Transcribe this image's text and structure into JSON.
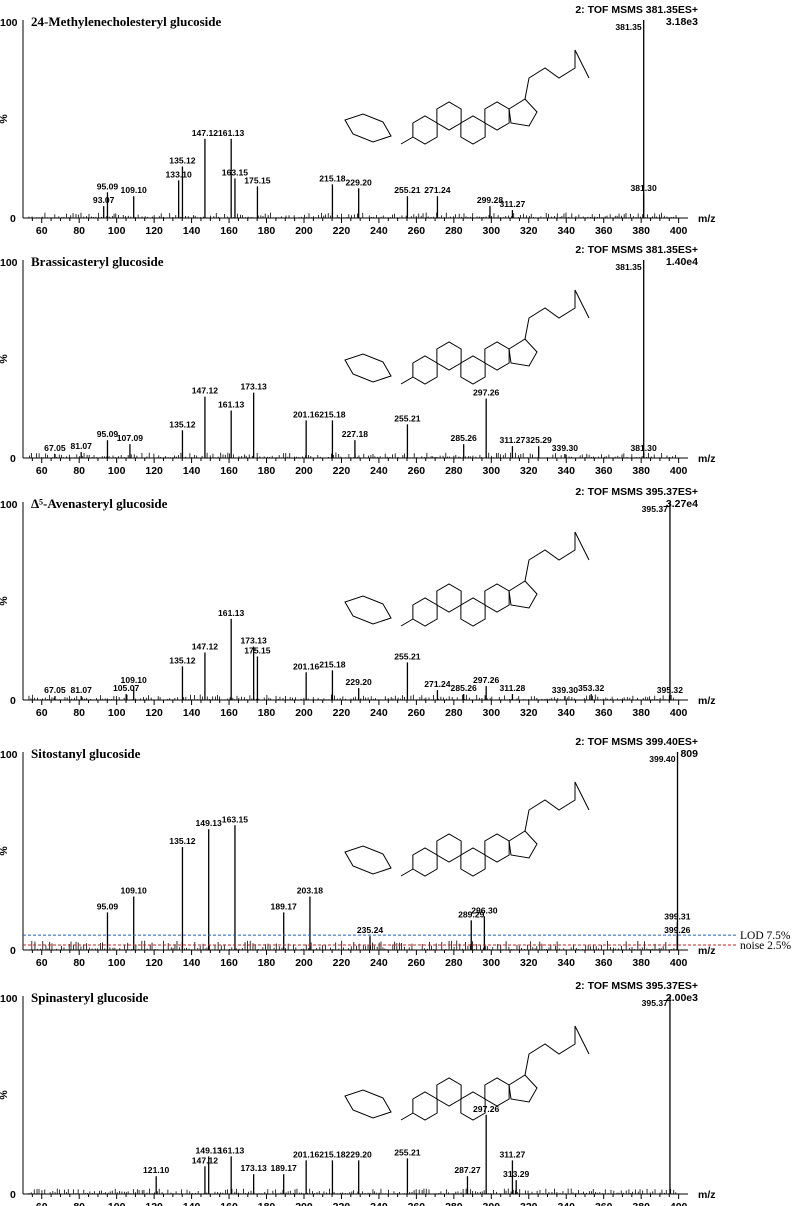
{
  "colors": {
    "lod_line": "#1f5fbf",
    "noise_line": "#cc1f1f",
    "ink": "#000000"
  },
  "panels": [
    {
      "title": "24-Methylenecholesteryl glucoside",
      "header": "2: TOF MSMS 381.35ES+",
      "base_peak_label": "381.35",
      "intensity": "3.18e3",
      "y_top": "100",
      "y_mid": "%",
      "y_zero": "0",
      "x_unit": "m/z",
      "ticks": [
        "60",
        "80",
        "100",
        "120",
        "140",
        "160",
        "180",
        "200",
        "220",
        "240",
        "260",
        "280",
        "300",
        "320",
        "340",
        "360",
        "380",
        "400"
      ]
    },
    {
      "title": "Brassicasteryl glucoside",
      "header": "2: TOF MSMS 381.35ES+",
      "base_peak_label": "381.35",
      "intensity": "1.40e4",
      "y_top": "100",
      "y_mid": "%",
      "y_zero": "0",
      "x_unit": "m/z",
      "ticks": [
        "60",
        "80",
        "100",
        "120",
        "140",
        "160",
        "180",
        "200",
        "220",
        "240",
        "260",
        "280",
        "300",
        "320",
        "340",
        "360",
        "380",
        "400"
      ]
    },
    {
      "title": "Δ⁵-Avenasteryl glucoside",
      "header": "2: TOF MSMS 395.37ES+",
      "base_peak_label": "395.37",
      "intensity": "3.27e4",
      "y_top": "100",
      "y_mid": "%",
      "y_zero": "0",
      "x_unit": "m/z",
      "ticks": [
        "60",
        "80",
        "100",
        "120",
        "140",
        "160",
        "180",
        "200",
        "220",
        "240",
        "260",
        "280",
        "300",
        "320",
        "340",
        "360",
        "380",
        "400"
      ]
    },
    {
      "title": "Sitostanyl glucoside",
      "header": "2: TOF MSMS 399.40ES+",
      "base_peak_label": "399.40",
      "intensity": "809",
      "y_top": "100",
      "y_mid": "%",
      "y_zero": "0",
      "x_unit": "m/z",
      "ticks": [
        "60",
        "80",
        "100",
        "120",
        "140",
        "160",
        "180",
        "200",
        "220",
        "240",
        "260",
        "280",
        "300",
        "320",
        "340",
        "360",
        "380",
        "400"
      ],
      "lod_label": "LOD 7.5%",
      "noise_label": "noise 2.5%"
    },
    {
      "title": "Spinasteryl glucoside",
      "header": "2: TOF MSMS 395.37ES+",
      "base_peak_label": "395.37",
      "intensity": "2.00e3",
      "y_top": "100",
      "y_mid": "%",
      "y_zero": "0",
      "x_unit": "m/z",
      "ticks": [
        "60",
        "80",
        "100",
        "120",
        "140",
        "160",
        "180",
        "200",
        "220",
        "240",
        "260",
        "280",
        "300",
        "320",
        "340",
        "360",
        "380",
        "400"
      ]
    }
  ],
  "chart_data": [
    {
      "type": "bar",
      "title": "24-Methylenecholesteryl glucoside",
      "xlabel": "m/z",
      "ylabel": "%",
      "xlim": [
        50,
        405
      ],
      "ylim": [
        0,
        100
      ],
      "peaks": [
        {
          "mz": 381.35,
          "rel": 100,
          "label": "381.35"
        },
        {
          "mz": 381.3,
          "rel": 12,
          "label": "381.30"
        },
        {
          "mz": 93.07,
          "rel": 6,
          "label": "93.07"
        },
        {
          "mz": 95.09,
          "rel": 13,
          "label": "95.09"
        },
        {
          "mz": 109.1,
          "rel": 11,
          "label": "109.10"
        },
        {
          "mz": 133.1,
          "rel": 19,
          "label": "133.10"
        },
        {
          "mz": 135.12,
          "rel": 26,
          "label": "135.12"
        },
        {
          "mz": 147.12,
          "rel": 40,
          "label": "147.12"
        },
        {
          "mz": 161.13,
          "rel": 40,
          "label": "161.13"
        },
        {
          "mz": 163.15,
          "rel": 20,
          "label": "163.15"
        },
        {
          "mz": 175.15,
          "rel": 16,
          "label": "175.15"
        },
        {
          "mz": 215.18,
          "rel": 17,
          "label": "215.18"
        },
        {
          "mz": 229.2,
          "rel": 15,
          "label": "229.20"
        },
        {
          "mz": 255.21,
          "rel": 11,
          "label": "255.21"
        },
        {
          "mz": 271.24,
          "rel": 11,
          "label": "271.24"
        },
        {
          "mz": 299.28,
          "rel": 6,
          "label": "299.28"
        },
        {
          "mz": 311.27,
          "rel": 4,
          "label": "311.27"
        }
      ]
    },
    {
      "type": "bar",
      "title": "Brassicasteryl glucoside",
      "xlabel": "m/z",
      "ylabel": "%",
      "xlim": [
        50,
        405
      ],
      "ylim": [
        0,
        100
      ],
      "peaks": [
        {
          "mz": 381.35,
          "rel": 100,
          "label": "381.35"
        },
        {
          "mz": 381.3,
          "rel": 2,
          "label": "381.30"
        },
        {
          "mz": 67.05,
          "rel": 2,
          "label": "67.05"
        },
        {
          "mz": 81.07,
          "rel": 3,
          "label": "81.07"
        },
        {
          "mz": 95.09,
          "rel": 9,
          "label": "95.09"
        },
        {
          "mz": 107.09,
          "rel": 7,
          "label": "107.09"
        },
        {
          "mz": 135.12,
          "rel": 14,
          "label": "135.12"
        },
        {
          "mz": 147.12,
          "rel": 31,
          "label": "147.12"
        },
        {
          "mz": 161.13,
          "rel": 24,
          "label": "161.13"
        },
        {
          "mz": 173.13,
          "rel": 33,
          "label": "173.13"
        },
        {
          "mz": 201.16,
          "rel": 19,
          "label": "201.16"
        },
        {
          "mz": 215.18,
          "rel": 19,
          "label": "215.18"
        },
        {
          "mz": 227.18,
          "rel": 9,
          "label": "227.18"
        },
        {
          "mz": 255.21,
          "rel": 17,
          "label": "255.21"
        },
        {
          "mz": 285.26,
          "rel": 7,
          "label": "285.26"
        },
        {
          "mz": 297.26,
          "rel": 30,
          "label": "297.26"
        },
        {
          "mz": 311.27,
          "rel": 6,
          "label": "311.27"
        },
        {
          "mz": 325.29,
          "rel": 6,
          "label": "325.29"
        },
        {
          "mz": 339.3,
          "rel": 2,
          "label": "339.30"
        }
      ]
    },
    {
      "type": "bar",
      "title": "Δ⁵-Avenasteryl glucoside",
      "xlabel": "m/z",
      "ylabel": "%",
      "xlim": [
        50,
        405
      ],
      "ylim": [
        0,
        100
      ],
      "peaks": [
        {
          "mz": 395.37,
          "rel": 100,
          "label": "395.37"
        },
        {
          "mz": 395.32,
          "rel": 2,
          "label": "395.32"
        },
        {
          "mz": 67.05,
          "rel": 2,
          "label": "67.05"
        },
        {
          "mz": 81.07,
          "rel": 2,
          "label": "81.07"
        },
        {
          "mz": 105.07,
          "rel": 3,
          "label": "105.07"
        },
        {
          "mz": 109.1,
          "rel": 7,
          "label": "109.10"
        },
        {
          "mz": 135.12,
          "rel": 17,
          "label": "135.12"
        },
        {
          "mz": 147.12,
          "rel": 24,
          "label": "147.12"
        },
        {
          "mz": 161.13,
          "rel": 41,
          "label": "161.13"
        },
        {
          "mz": 173.13,
          "rel": 27,
          "label": "173.13"
        },
        {
          "mz": 175.15,
          "rel": 22,
          "label": "175.15"
        },
        {
          "mz": 201.16,
          "rel": 14,
          "label": "201.16"
        },
        {
          "mz": 215.18,
          "rel": 15,
          "label": "215.18"
        },
        {
          "mz": 229.2,
          "rel": 6,
          "label": "229.20"
        },
        {
          "mz": 255.21,
          "rel": 19,
          "label": "255.21"
        },
        {
          "mz": 271.24,
          "rel": 5,
          "label": "271.24"
        },
        {
          "mz": 285.26,
          "rel": 3,
          "label": "285.26"
        },
        {
          "mz": 297.26,
          "rel": 7,
          "label": "297.26"
        },
        {
          "mz": 311.28,
          "rel": 3,
          "label": "311.28"
        },
        {
          "mz": 339.3,
          "rel": 2,
          "label": "339.30"
        },
        {
          "mz": 353.32,
          "rel": 3,
          "label": "353.32"
        }
      ]
    },
    {
      "type": "bar",
      "title": "Sitostanyl glucoside",
      "xlabel": "m/z",
      "ylabel": "%",
      "xlim": [
        50,
        405
      ],
      "ylim": [
        0,
        100
      ],
      "reference_lines": [
        {
          "label": "LOD 7.5%",
          "y": 7.5
        },
        {
          "label": "noise 2.5%",
          "y": 2.5
        }
      ],
      "peaks": [
        {
          "mz": 399.4,
          "rel": 100,
          "label": "399.40"
        },
        {
          "mz": 399.31,
          "rel": 14,
          "label": "399.31"
        },
        {
          "mz": 399.26,
          "rel": 7,
          "label": "399.26"
        },
        {
          "mz": 95.09,
          "rel": 19,
          "label": "95.09"
        },
        {
          "mz": 109.1,
          "rel": 27,
          "label": "109.10"
        },
        {
          "mz": 135.12,
          "rel": 52,
          "label": "135.12"
        },
        {
          "mz": 149.13,
          "rel": 61,
          "label": "149.13"
        },
        {
          "mz": 163.15,
          "rel": 63,
          "label": "163.15"
        },
        {
          "mz": 189.17,
          "rel": 19,
          "label": "189.17"
        },
        {
          "mz": 203.18,
          "rel": 27,
          "label": "203.18"
        },
        {
          "mz": 235.24,
          "rel": 7,
          "label": "235.24"
        },
        {
          "mz": 289.29,
          "rel": 15,
          "label": "289.29"
        },
        {
          "mz": 296.3,
          "rel": 17,
          "label": "296.30"
        }
      ]
    },
    {
      "type": "bar",
      "title": "Spinasteryl glucoside",
      "xlabel": "m/z",
      "ylabel": "%",
      "xlim": [
        50,
        405
      ],
      "ylim": [
        0,
        100
      ],
      "peaks": [
        {
          "mz": 395.37,
          "rel": 100,
          "label": "395.37"
        },
        {
          "mz": 121.1,
          "rel": 9,
          "label": "121.10"
        },
        {
          "mz": 147.12,
          "rel": 14,
          "label": "147.12"
        },
        {
          "mz": 149.13,
          "rel": 19,
          "label": "149.13"
        },
        {
          "mz": 161.13,
          "rel": 19,
          "label": "161.13"
        },
        {
          "mz": 173.13,
          "rel": 10,
          "label": "173.13"
        },
        {
          "mz": 189.17,
          "rel": 10,
          "label": "189.17"
        },
        {
          "mz": 201.16,
          "rel": 17,
          "label": "201.16"
        },
        {
          "mz": 215.18,
          "rel": 17,
          "label": "215.18"
        },
        {
          "mz": 229.2,
          "rel": 17,
          "label": "229.20"
        },
        {
          "mz": 255.21,
          "rel": 18,
          "label": "255.21"
        },
        {
          "mz": 287.27,
          "rel": 9,
          "label": "287.27"
        },
        {
          "mz": 297.26,
          "rel": 40,
          "label": "297.26"
        },
        {
          "mz": 311.27,
          "rel": 17,
          "label": "311.27"
        },
        {
          "mz": 313.29,
          "rel": 7,
          "label": "313.29"
        }
      ]
    }
  ]
}
